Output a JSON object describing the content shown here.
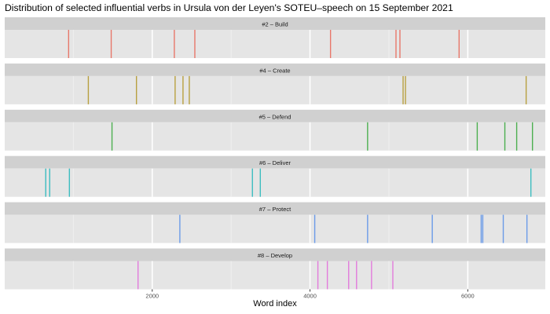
{
  "chart_data": {
    "type": "event-strip",
    "title": "Distribution of selected influential verbs in Ursula von der Leyen's SOTEU–speech on 15 September 2021",
    "xlabel": "Word index",
    "xlim": [
      120,
      7000
    ],
    "x_ticks": [
      2000,
      4000,
      6000
    ],
    "grid": true,
    "panels": [
      {
        "label": "#2 – Build",
        "color": "#E8776A",
        "x": [
          940,
          1480,
          2280,
          2540,
          4260,
          5090,
          5140,
          5890
        ]
      },
      {
        "label": "#4 – Create",
        "color": "#B8A040",
        "x": [
          1190,
          1800,
          2290,
          2390,
          2470,
          5180,
          5210,
          6740
        ]
      },
      {
        "label": "#5 – Defend",
        "color": "#4CAF50",
        "x": [
          1490,
          4730,
          6120,
          6470,
          6620,
          6820
        ]
      },
      {
        "label": "#6 – Deliver",
        "color": "#3DBDC0",
        "x": [
          650,
          700,
          950,
          3270,
          3370,
          6800
        ]
      },
      {
        "label": "#7 – Protect",
        "color": "#6B9BE8",
        "x": [
          2350,
          4060,
          4730,
          5550,
          6170,
          6190,
          6450,
          6750
        ]
      },
      {
        "label": "#8 – Develop",
        "color": "#E27BDC",
        "x": [
          1820,
          4100,
          4220,
          4490,
          4590,
          4780,
          5050
        ]
      }
    ]
  }
}
